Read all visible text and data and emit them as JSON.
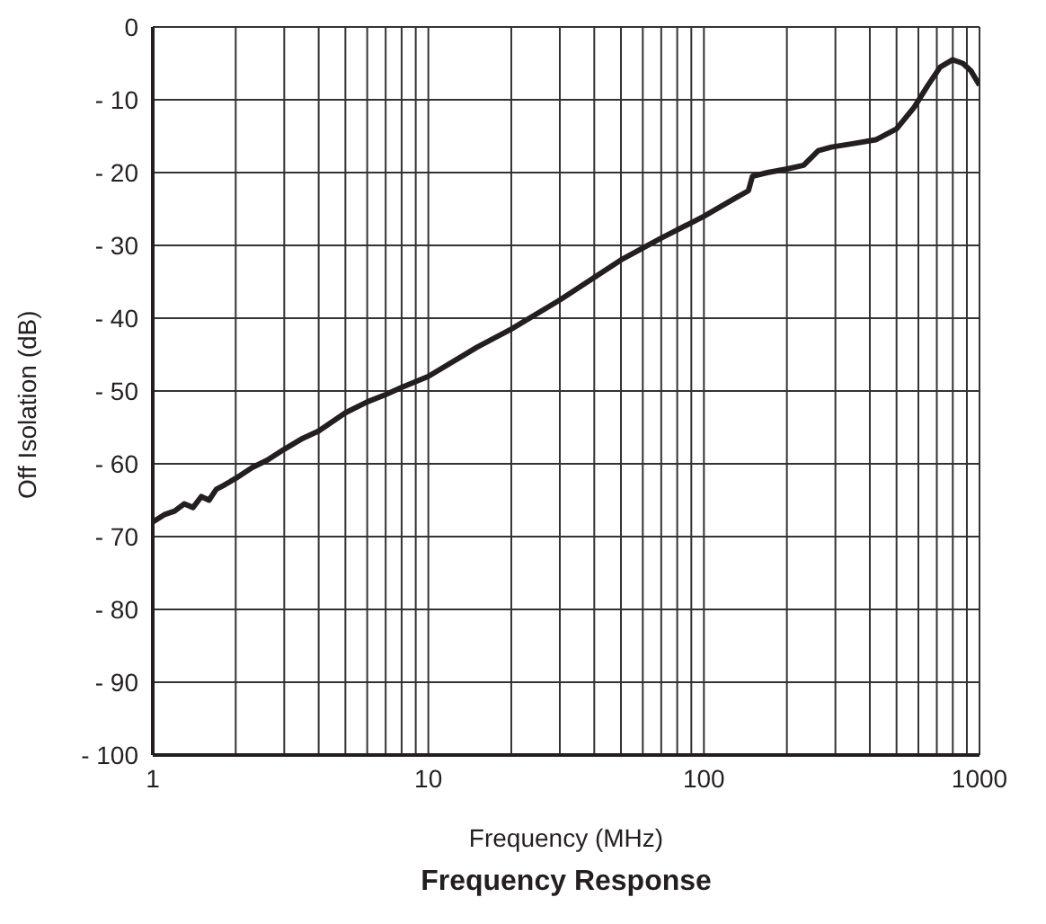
{
  "chart_data": {
    "type": "line",
    "title": "Frequency Response",
    "xlabel": "Frequency (MHz)",
    "ylabel": "Off Isolation (dB)",
    "log": "x",
    "grid": true,
    "marker": "none",
    "line_style": "solid",
    "xlim": [
      1,
      1000
    ],
    "ylim": [
      -100,
      0
    ],
    "xticks": [
      1,
      {
        "value": 2,
        "label": null
      },
      {
        "value": 3,
        "label": null
      },
      {
        "value": 4,
        "label": null
      },
      {
        "value": 5,
        "label": null
      },
      {
        "value": 6,
        "label": null
      },
      {
        "value": 7,
        "label": null
      },
      {
        "value": 8,
        "label": null
      },
      {
        "value": 9,
        "label": null
      },
      10,
      {
        "value": 20,
        "label": null
      },
      {
        "value": 30,
        "label": null
      },
      {
        "value": 40,
        "label": null
      },
      {
        "value": 50,
        "label": null
      },
      {
        "value": 60,
        "label": null
      },
      {
        "value": 70,
        "label": null
      },
      {
        "value": 80,
        "label": null
      },
      {
        "value": 90,
        "label": null
      },
      100,
      {
        "value": 200,
        "label": null
      },
      {
        "value": 300,
        "label": null
      },
      {
        "value": 400,
        "label": null
      },
      {
        "value": 500,
        "label": null
      },
      {
        "value": 600,
        "label": null
      },
      {
        "value": 700,
        "label": null
      },
      {
        "value": 800,
        "label": null
      },
      {
        "value": 900,
        "label": null
      },
      1000
    ],
    "yticks": [
      0,
      {
        "value": -10,
        "label": "- 10"
      },
      {
        "value": -20,
        "label": "- 20"
      },
      {
        "value": -30,
        "label": "- 30"
      },
      {
        "value": -40,
        "label": "- 40"
      },
      {
        "value": -50,
        "label": "- 50"
      },
      {
        "value": -60,
        "label": "- 60"
      },
      {
        "value": -70,
        "label": "- 70"
      },
      {
        "value": -80,
        "label": "- 80"
      },
      {
        "value": -90,
        "label": "- 90"
      },
      {
        "value": -100,
        "label": "- 100"
      }
    ],
    "series": [
      {
        "color": "#231f20",
        "x": [
          1,
          1.1,
          1.2,
          1.3,
          1.4,
          1.5,
          1.6,
          1.7,
          1.8,
          2,
          2.3,
          2.6,
          3,
          3.5,
          4,
          5,
          6,
          7,
          8,
          10,
          15,
          20,
          30,
          50,
          70,
          100,
          130,
          145,
          150,
          170,
          200,
          230,
          260,
          290,
          350,
          420,
          500,
          580,
          650,
          720,
          800,
          870,
          930,
          1000
        ],
        "values": [
          -68,
          -67,
          -66.5,
          -65.5,
          -66,
          -64.5,
          -65,
          -63.5,
          -63,
          -62,
          -60.5,
          -59.5,
          -58,
          -56.5,
          -55.5,
          -53,
          -51.5,
          -50.5,
          -49.5,
          -48,
          -44,
          -41.5,
          -37.5,
          -32,
          -29,
          -26,
          -23.5,
          -22.5,
          -20.5,
          -20,
          -19.5,
          -19,
          -17,
          -16.5,
          -16,
          -15.5,
          -14,
          -11,
          -8,
          -5.5,
          -4.5,
          -5,
          -6,
          -8
        ]
      }
    ]
  }
}
